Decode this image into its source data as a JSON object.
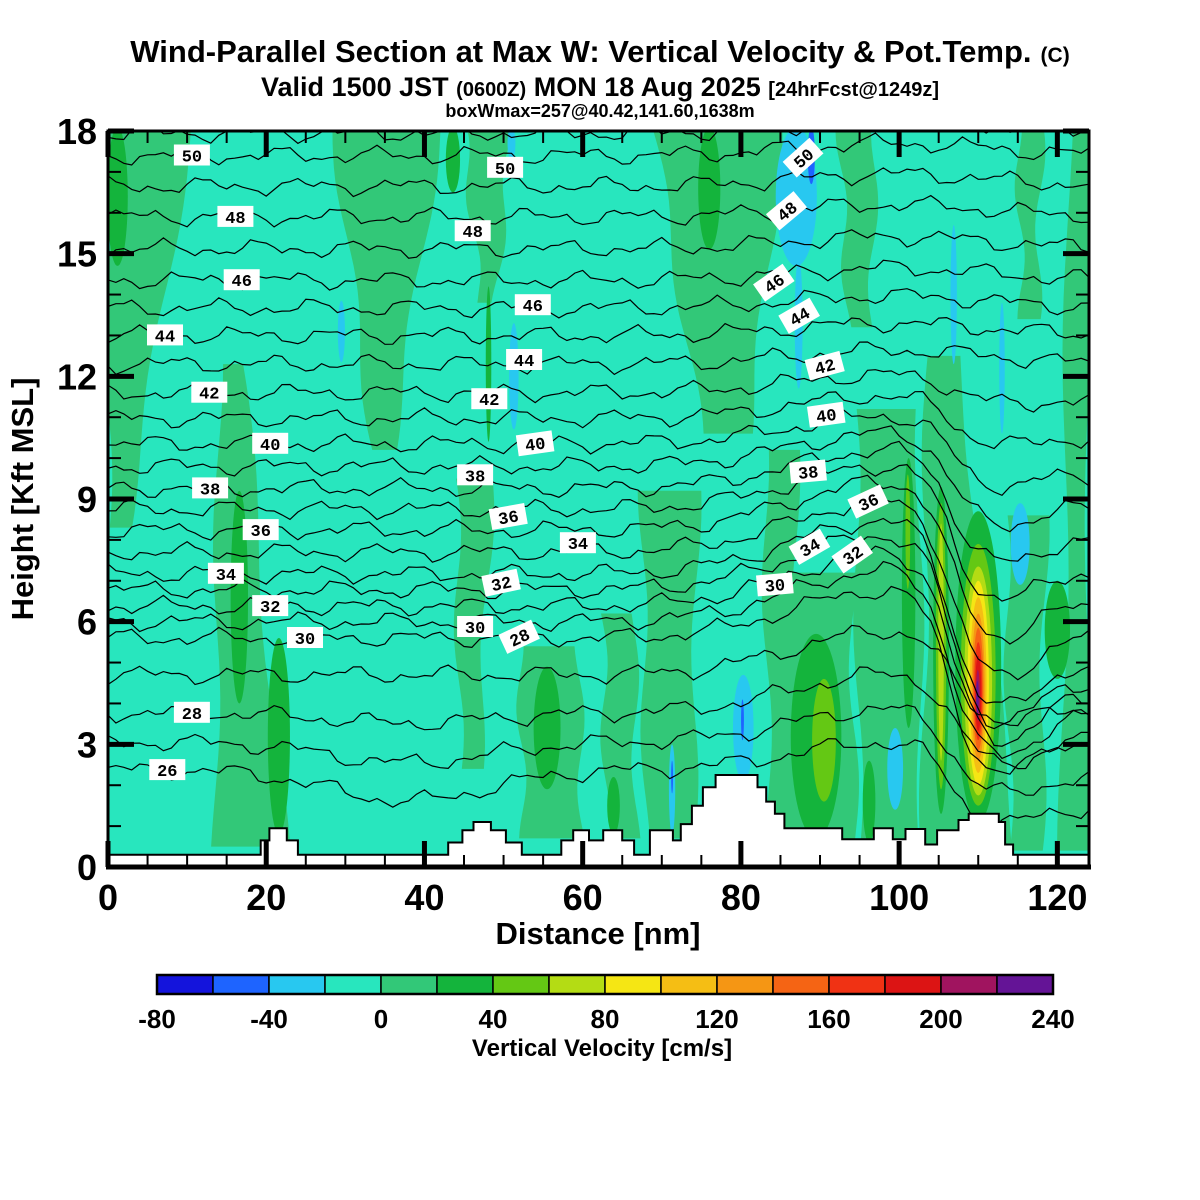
{
  "header": {
    "title": "Wind-Parallel Section at Max W: Vertical Velocity & Pot.Temp.",
    "title_suffix": "(C)",
    "valid_prefix": "Valid 1500 JST",
    "valid_small1": "(0600Z)",
    "valid_main": "MON 18 Aug 2025",
    "valid_small2": "[24hrFcst@1249z]",
    "subnote": "boxWmax=257@40.42,141.60,1638m"
  },
  "axes": {
    "x": {
      "label": "Distance [nm]",
      "min": 0,
      "max": 124,
      "major_ticks": [
        0,
        20,
        40,
        60,
        80,
        100,
        120
      ],
      "minor_step": 5
    },
    "y": {
      "label": "Height [Kft MSL]",
      "min": 0,
      "max": 18,
      "major_ticks": [
        0,
        3,
        6,
        9,
        12,
        15,
        18
      ],
      "minor_step": 1
    }
  },
  "colorbar": {
    "title": "Vertical Velocity [cm/s]",
    "min": -80,
    "max": 240,
    "step": 20,
    "tick_labels": [
      "-80",
      "-40",
      "0",
      "40",
      "80",
      "120",
      "160",
      "200",
      "240"
    ],
    "colors": [
      "#1414dc",
      "#1e64ff",
      "#28c8f0",
      "#28e6be",
      "#32c878",
      "#14b43c",
      "#64c814",
      "#b4dc14",
      "#f5e614",
      "#f5be14",
      "#f59614",
      "#f56414",
      "#f03214",
      "#dc1414",
      "#a0145f",
      "#641496"
    ]
  },
  "chart_data": {
    "type": "heatmap",
    "description": "Vertical cross-section along wind at max W: filled contours of vertical velocity (cm/s, 20 cm/s steps from -80 to 240) with potential temperature isolines (interval 1 C, labeled every 2 C) and white terrain profile.",
    "x_unit": "nm",
    "y_unit": "Kft MSL",
    "xlim": [
      0,
      124
    ],
    "ylim": [
      0,
      18
    ],
    "fill_field": "vertical velocity (cm/s)",
    "contour_field": "potential temperature (C)",
    "contour_interval": 1,
    "label_interval": 2,
    "max_w_cms": 257,
    "max_w_location": "40.42,141.60",
    "max_w_height_m": 1638,
    "isotherm_base_heights_kft": {
      "26": 2.37,
      "27": 3.05,
      "28": 3.77,
      "29": 4.7,
      "30": 5.6,
      "31": 6.0,
      "32": 6.38,
      "33": 6.78,
      "34": 7.17,
      "35": 7.7,
      "36": 8.24,
      "37": 8.75,
      "38": 9.26,
      "39": 9.8,
      "40": 10.35,
      "41": 10.97,
      "42": 11.6,
      "43": 12.3,
      "44": 13.0,
      "45": 13.67,
      "46": 14.35,
      "47": 15.12,
      "48": 15.9,
      "49": 16.65,
      "50": 17.4,
      "51": 17.95
    },
    "contour_labels": [
      {
        "v": 50,
        "x": 10.6,
        "y": 17.4,
        "r": 0
      },
      {
        "v": 48,
        "x": 16.1,
        "y": 15.9,
        "r": 0
      },
      {
        "v": 46,
        "x": 16.9,
        "y": 14.35,
        "r": 0
      },
      {
        "v": 44,
        "x": 7.2,
        "y": 13.0,
        "r": 0
      },
      {
        "v": 42,
        "x": 12.8,
        "y": 11.6,
        "r": 0
      },
      {
        "v": 40,
        "x": 20.5,
        "y": 10.35,
        "r": 0
      },
      {
        "v": 38,
        "x": 12.9,
        "y": 9.26,
        "r": 0
      },
      {
        "v": 36,
        "x": 19.3,
        "y": 8.24,
        "r": 0
      },
      {
        "v": 34,
        "x": 14.9,
        "y": 7.17,
        "r": 0
      },
      {
        "v": 32,
        "x": 20.5,
        "y": 6.38,
        "r": 0
      },
      {
        "v": 30,
        "x": 24.9,
        "y": 5.6,
        "r": 0
      },
      {
        "v": 28,
        "x": 10.6,
        "y": 3.77,
        "r": 0
      },
      {
        "v": 26,
        "x": 7.5,
        "y": 2.37,
        "r": 0
      },
      {
        "v": 50,
        "x": 50.2,
        "y": 17.1,
        "r": 0
      },
      {
        "v": 48,
        "x": 46.1,
        "y": 15.55,
        "r": 0
      },
      {
        "v": 46,
        "x": 53.7,
        "y": 13.74,
        "r": 0
      },
      {
        "v": 44,
        "x": 52.6,
        "y": 12.4,
        "r": 0
      },
      {
        "v": 42,
        "x": 48.2,
        "y": 11.44,
        "r": 0
      },
      {
        "v": 40,
        "x": 54.0,
        "y": 10.35,
        "r": -8
      },
      {
        "v": 38,
        "x": 46.4,
        "y": 9.58,
        "r": 0
      },
      {
        "v": 36,
        "x": 50.6,
        "y": 8.56,
        "r": -10
      },
      {
        "v": 34,
        "x": 59.4,
        "y": 7.92,
        "r": 0
      },
      {
        "v": 32,
        "x": 49.7,
        "y": 6.94,
        "r": -12
      },
      {
        "v": 30,
        "x": 46.4,
        "y": 5.87,
        "r": 0
      },
      {
        "v": 28,
        "x": 52.0,
        "y": 5.62,
        "r": -25
      },
      {
        "v": 50,
        "x": 87.9,
        "y": 17.34,
        "r": -42
      },
      {
        "v": 48,
        "x": 85.8,
        "y": 16.04,
        "r": -40
      },
      {
        "v": 46,
        "x": 84.2,
        "y": 14.28,
        "r": -35
      },
      {
        "v": 44,
        "x": 87.4,
        "y": 13.47,
        "r": -30
      },
      {
        "v": 42,
        "x": 90.6,
        "y": 12.25,
        "r": -15
      },
      {
        "v": 40,
        "x": 90.8,
        "y": 11.05,
        "r": -8
      },
      {
        "v": 38,
        "x": 88.5,
        "y": 9.66,
        "r": -5
      },
      {
        "v": 36,
        "x": 96.1,
        "y": 8.93,
        "r": -25
      },
      {
        "v": 34,
        "x": 88.7,
        "y": 7.82,
        "r": -30
      },
      {
        "v": 32,
        "x": 94.1,
        "y": 7.63,
        "r": -35
      },
      {
        "v": 30,
        "x": 84.3,
        "y": 6.9,
        "r": -5
      }
    ],
    "terrain_steps_nm_kft": [
      [
        0,
        0.3
      ],
      [
        19.3,
        0.65
      ],
      [
        20.4,
        0.95
      ],
      [
        22.6,
        0.65
      ],
      [
        24,
        0.3
      ],
      [
        43,
        0.6
      ],
      [
        44.8,
        0.9
      ],
      [
        46.2,
        1.1
      ],
      [
        48.4,
        0.9
      ],
      [
        50.3,
        0.6
      ],
      [
        52.3,
        0.3
      ],
      [
        57.3,
        0.65
      ],
      [
        58.8,
        0.9
      ],
      [
        60.8,
        0.65
      ],
      [
        62.6,
        0.9
      ],
      [
        65,
        0.65
      ],
      [
        66.5,
        0.3
      ],
      [
        68.5,
        0.9
      ],
      [
        71.4,
        0.65
      ],
      [
        72.4,
        1.05
      ],
      [
        73.8,
        1.5
      ],
      [
        75.2,
        1.95
      ],
      [
        76.8,
        2.25
      ],
      [
        82.1,
        1.95
      ],
      [
        83.2,
        1.6
      ],
      [
        84.3,
        1.3
      ],
      [
        85.5,
        0.95
      ],
      [
        92.8,
        0.68
      ],
      [
        96.8,
        0.95
      ],
      [
        99.2,
        0.68
      ],
      [
        100.8,
        0.93
      ],
      [
        103.3,
        0.55
      ],
      [
        104.8,
        0.9
      ],
      [
        107.5,
        1.15
      ],
      [
        108.8,
        1.3
      ],
      [
        112.6,
        1.1
      ],
      [
        113.4,
        0.55
      ],
      [
        114.4,
        0.3
      ]
    ],
    "updraft_bands": [
      {
        "xt": [
          0,
          10.5
        ],
        "xb": [
          0,
          2.5
        ],
        "y": [
          18,
          8.3
        ]
      },
      {
        "xt": [
          28.5,
          42
        ],
        "xb": [
          33.5,
          36
        ],
        "y": [
          18,
          10.2
        ]
      },
      {
        "xt": [
          14,
          17
        ],
        "xb": [
          13.5,
          22.5
        ],
        "y": [
          12.3,
          0.5
        ]
      },
      {
        "xt": [
          44,
          48.5
        ],
        "xb": [
          44.5,
          47
        ],
        "y": [
          9.5,
          2.4
        ]
      },
      {
        "xt": [
          45,
          51
        ],
        "xb": [
          47,
          49
        ],
        "y": [
          18,
          13.8
        ]
      },
      {
        "xt": [
          52,
          59.5
        ],
        "xb": [
          52.5,
          60
        ],
        "y": [
          5.4,
          0.7
        ]
      },
      {
        "xt": [
          62.5,
          66.5
        ],
        "xb": [
          63,
          66.8
        ],
        "y": [
          6.2,
          0.7
        ]
      },
      {
        "xt": [
          69,
          85.5
        ],
        "xb": [
          75,
          81
        ],
        "y": [
          18,
          10.6
        ]
      },
      {
        "xt": [
          67.5,
          74.5
        ],
        "xb": [
          68,
          74
        ],
        "y": [
          9.2,
          0.7
        ]
      },
      {
        "xt": [
          83,
          87
        ],
        "xb": [
          83.5,
          86.5
        ],
        "y": [
          10.2,
          0.8
        ]
      },
      {
        "xt": [
          85.5,
          94
        ],
        "xb": [
          85.8,
          94.5
        ],
        "y": [
          7.2,
          0.5
        ]
      },
      {
        "xt": [
          92.5,
          97
        ],
        "xb": [
          93.5,
          96.5
        ],
        "y": [
          18,
          13.2
        ]
      },
      {
        "xt": [
          94.5,
          102.5
        ],
        "xb": [
          95,
          102.8
        ],
        "y": [
          11.2,
          0.5
        ]
      },
      {
        "xt": [
          103.5,
          107.5
        ],
        "xb": [
          103,
          114.8
        ],
        "y": [
          12.5,
          0.4
        ]
      },
      {
        "xt": [
          113.5,
          118.5
        ],
        "xb": [
          114,
          118
        ],
        "y": [
          8.6,
          0.4
        ]
      },
      {
        "xt": [
          115,
          118
        ],
        "xb": [
          115.5,
          117.5
        ],
        "y": [
          18,
          13.4
        ]
      },
      {
        "xt": [
          121.5,
          124
        ],
        "xb": [
          120.5,
          124
        ],
        "y": [
          18,
          0.4
        ]
      }
    ],
    "green_patches": [
      {
        "ci": 5,
        "cx": 16.6,
        "cy": 6.6,
        "rx": 1.1,
        "ry": 2.6
      },
      {
        "ci": 5,
        "cx": 21.6,
        "cy": 3.2,
        "rx": 1.4,
        "ry": 2.4
      },
      {
        "ci": 5,
        "cx": 48.1,
        "cy": 12.3,
        "rx": 0.35,
        "ry": 1.9
      },
      {
        "ci": 5,
        "cx": 55.5,
        "cy": 3.4,
        "rx": 1.7,
        "ry": 1.5
      },
      {
        "ci": 5,
        "cx": 43.6,
        "cy": 17.3,
        "rx": 0.9,
        "ry": 0.8
      },
      {
        "ci": 5,
        "cx": 76.0,
        "cy": 16.6,
        "rx": 1.4,
        "ry": 1.5
      },
      {
        "ci": 5,
        "cx": 1.2,
        "cy": 16.4,
        "rx": 1.3,
        "ry": 1.7
      },
      {
        "ci": 5,
        "cx": 89.5,
        "cy": 3.2,
        "rx": 3.2,
        "ry": 2.5
      },
      {
        "ci": 5,
        "cx": 101.2,
        "cy": 6.7,
        "rx": 0.85,
        "ry": 3.3
      },
      {
        "ci": 5,
        "cx": 120.0,
        "cy": 5.8,
        "rx": 1.6,
        "ry": 1.2
      },
      {
        "ci": 5,
        "cx": 63.9,
        "cy": 1.5,
        "rx": 0.8,
        "ry": 0.7
      },
      {
        "ci": 5,
        "cx": 96.2,
        "cy": 1.6,
        "rx": 0.8,
        "ry": 1.0
      },
      {
        "ci": 6,
        "cx": 90.5,
        "cy": 3.1,
        "rx": 1.5,
        "ry": 1.5
      },
      {
        "ci": 6,
        "cx": 101.1,
        "cy": 8.2,
        "rx": 0.3,
        "ry": 1.4
      }
    ],
    "tower_rings": [
      {
        "ci": 5,
        "cx": 105.3,
        "cy": 5.3,
        "rx": 1.0,
        "ry": 4.0
      },
      {
        "ci": 6,
        "cx": 105.3,
        "cy": 5.4,
        "rx": 0.65,
        "ry": 3.5
      },
      {
        "ci": 7,
        "cx": 105.3,
        "cy": 5.5,
        "rx": 0.35,
        "ry": 2.9
      }
    ],
    "plume_rings": [
      {
        "ci": 5,
        "cx": 110.0,
        "cy": 4.9,
        "rx": 2.9,
        "ry": 3.8
      },
      {
        "ci": 6,
        "cx": 110.0,
        "cy": 4.7,
        "rx": 2.2,
        "ry": 3.2
      },
      {
        "ci": 7,
        "cx": 110.0,
        "cy": 4.55,
        "rx": 1.75,
        "ry": 2.8
      },
      {
        "ci": 8,
        "cx": 110.0,
        "cy": 4.5,
        "rx": 1.35,
        "ry": 2.5
      },
      {
        "ci": 9,
        "cx": 110.0,
        "cy": 4.45,
        "rx": 1.05,
        "ry": 2.15
      },
      {
        "ci": 10,
        "cx": 110.0,
        "cy": 4.4,
        "rx": 0.82,
        "ry": 1.8
      },
      {
        "ci": 11,
        "cx": 110.0,
        "cy": 4.35,
        "rx": 0.65,
        "ry": 1.5
      },
      {
        "ci": 12,
        "cx": 110.0,
        "cy": 4.3,
        "rx": 0.5,
        "ry": 1.2
      },
      {
        "ci": 13,
        "cx": 110.0,
        "cy": 4.25,
        "rx": 0.38,
        "ry": 0.92
      },
      {
        "ci": 14,
        "cx": 109.95,
        "cy": 4.2,
        "rx": 0.26,
        "ry": 0.62
      },
      {
        "ci": 15,
        "cx": 109.9,
        "cy": 4.15,
        "rx": 0.16,
        "ry": 0.4
      }
    ],
    "downdraft_patches": [
      {
        "ci": 2,
        "cx": 29.5,
        "cy": 13.1,
        "rx": 0.45,
        "ry": 0.75
      },
      {
        "ci": 2,
        "cx": 51.3,
        "cy": 12.0,
        "rx": 0.6,
        "ry": 1.3
      },
      {
        "ci": 2,
        "cx": 87.0,
        "cy": 16.4,
        "rx": 2.6,
        "ry": 1.7
      },
      {
        "ci": 2,
        "cx": 87.3,
        "cy": 13.3,
        "rx": 0.5,
        "ry": 1.6
      },
      {
        "ci": 2,
        "cx": 106.9,
        "cy": 14.0,
        "rx": 0.4,
        "ry": 1.7
      },
      {
        "ci": 2,
        "cx": 113.0,
        "cy": 12.2,
        "rx": 0.35,
        "ry": 1.6
      },
      {
        "ci": 2,
        "cx": 80.3,
        "cy": 3.4,
        "rx": 1.3,
        "ry": 1.3
      },
      {
        "ci": 2,
        "cx": 71.3,
        "cy": 1.9,
        "rx": 0.4,
        "ry": 1.1
      },
      {
        "ci": 2,
        "cx": 99.5,
        "cy": 2.4,
        "rx": 1.0,
        "ry": 1.0
      },
      {
        "ci": 2,
        "cx": 115.3,
        "cy": 7.9,
        "rx": 1.2,
        "ry": 1.0
      },
      {
        "ci": 2,
        "cx": 51.0,
        "cy": 17.7,
        "rx": 0.5,
        "ry": 0.4
      },
      {
        "ci": 1,
        "cx": 88.9,
        "cy": 17.4,
        "rx": 0.45,
        "ry": 0.7
      },
      {
        "ci": 1,
        "cx": 80.2,
        "cy": 3.6,
        "rx": 0.18,
        "ry": 0.5
      },
      {
        "ci": 1,
        "cx": 71.3,
        "cy": 2.2,
        "rx": 0.12,
        "ry": 0.4
      }
    ]
  }
}
